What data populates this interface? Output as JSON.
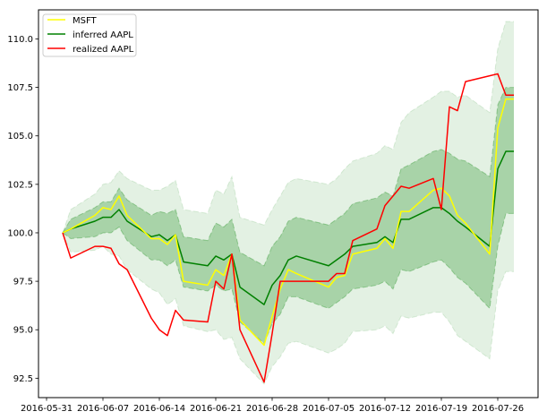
{
  "chart_data": {
    "type": "line",
    "xlim": [
      "2016-05-30",
      "2016-07-31"
    ],
    "ylim": [
      91.5,
      111.5
    ],
    "x_ticks": [
      "2016-05-31",
      "2016-06-07",
      "2016-06-14",
      "2016-06-21",
      "2016-06-28",
      "2016-07-05",
      "2016-07-12",
      "2016-07-19",
      "2016-07-26"
    ],
    "y_ticks": [
      "92.5",
      "95.0",
      "97.5",
      "100.0",
      "102.5",
      "105.0",
      "107.5",
      "110.0"
    ],
    "legend": {
      "placement": "top-left",
      "entries": [
        "MSFT",
        "inferred AAPL",
        "realized AAPL"
      ]
    },
    "colors": {
      "MSFT": "#ffff00",
      "inferred": "#008000",
      "realized": "#ff0000",
      "band": "#008000"
    },
    "x": [
      "2016-06-02",
      "2016-06-03",
      "2016-06-06",
      "2016-06-07",
      "2016-06-08",
      "2016-06-09",
      "2016-06-10",
      "2016-06-13",
      "2016-06-14",
      "2016-06-15",
      "2016-06-16",
      "2016-06-17",
      "2016-06-20",
      "2016-06-21",
      "2016-06-22",
      "2016-06-23",
      "2016-06-24",
      "2016-06-27",
      "2016-06-28",
      "2016-06-29",
      "2016-06-30",
      "2016-07-01",
      "2016-07-05",
      "2016-07-06",
      "2016-07-07",
      "2016-07-08",
      "2016-07-11",
      "2016-07-12",
      "2016-07-13",
      "2016-07-14",
      "2016-07-15",
      "2016-07-18",
      "2016-07-19",
      "2016-07-20",
      "2016-07-21",
      "2016-07-22",
      "2016-07-25",
      "2016-07-26",
      "2016-07-27",
      "2016-07-28"
    ],
    "series": [
      {
        "name": "MSFT",
        "values": [
          100.0,
          100.2,
          100.9,
          101.3,
          101.2,
          101.9,
          100.9,
          99.7,
          99.7,
          99.4,
          99.9,
          97.5,
          97.3,
          98.1,
          97.8,
          98.9,
          95.5,
          94.2,
          95.7,
          97.1,
          98.1,
          97.9,
          97.2,
          97.7,
          97.8,
          98.9,
          99.2,
          99.7,
          99.2,
          101.1,
          101.1,
          102.2,
          102.3,
          101.9,
          100.9,
          100.5,
          98.9,
          105.4,
          106.9,
          106.9
        ]
      },
      {
        "name": "inferred AAPL",
        "values": [
          100.0,
          100.2,
          100.6,
          100.8,
          100.8,
          101.2,
          100.6,
          99.8,
          99.9,
          99.6,
          99.9,
          98.5,
          98.3,
          98.8,
          98.6,
          98.9,
          97.2,
          96.3,
          97.3,
          97.8,
          98.6,
          98.8,
          98.3,
          98.6,
          98.9,
          99.3,
          99.5,
          99.8,
          99.5,
          100.7,
          100.7,
          101.3,
          101.3,
          101.0,
          100.6,
          100.3,
          99.3,
          103.3,
          104.2,
          104.2
        ]
      },
      {
        "name": "realized AAPL",
        "values": [
          100.0,
          98.7,
          99.3,
          99.3,
          99.2,
          98.4,
          98.1,
          95.6,
          95.0,
          94.7,
          96.0,
          95.5,
          95.4,
          97.5,
          97.1,
          98.9,
          95.0,
          92.3,
          94.8,
          97.5,
          97.5,
          97.5,
          97.5,
          97.9,
          97.9,
          99.6,
          100.2,
          101.4,
          101.9,
          102.4,
          102.3,
          102.8,
          101.2,
          106.5,
          106.3,
          107.8,
          108.1,
          108.2,
          107.1,
          107.1
        ]
      }
    ],
    "inner_band": {
      "upper": [
        100.0,
        100.7,
        101.3,
        101.6,
        101.6,
        102.3,
        101.7,
        100.9,
        101.1,
        101.0,
        101.2,
        99.8,
        99.6,
        100.5,
        100.3,
        100.7,
        99.0,
        98.3,
        99.3,
        99.8,
        100.6,
        100.8,
        100.4,
        100.7,
        101.0,
        101.5,
        101.8,
        102.1,
        101.9,
        103.3,
        103.5,
        104.2,
        104.3,
        104.1,
        103.8,
        103.7,
        102.9,
        106.6,
        107.5,
        107.5
      ],
      "lower": [
        100.0,
        99.7,
        99.8,
        100.0,
        100.0,
        100.3,
        99.6,
        98.6,
        98.6,
        98.3,
        98.6,
        97.2,
        97.0,
        97.3,
        97.0,
        97.1,
        95.4,
        94.3,
        95.3,
        95.8,
        96.7,
        96.7,
        96.1,
        96.4,
        96.7,
        97.1,
        97.3,
        97.5,
        97.1,
        98.1,
        98.0,
        98.5,
        98.6,
        98.2,
        97.7,
        97.4,
        96.1,
        99.3,
        101.0,
        101.0
      ]
    },
    "outer_band": {
      "upper": [
        100.0,
        101.2,
        102.0,
        102.5,
        102.6,
        103.2,
        102.8,
        102.2,
        102.2,
        102.4,
        102.7,
        101.2,
        101.0,
        102.2,
        102.0,
        102.9,
        100.8,
        100.4,
        101.2,
        101.9,
        102.6,
        102.8,
        102.5,
        102.8,
        103.3,
        103.7,
        104.1,
        104.5,
        104.3,
        105.7,
        106.2,
        107.0,
        107.3,
        107.3,
        107.0,
        107.1,
        106.2,
        109.5,
        110.9,
        110.9
      ],
      "lower": [
        100.0,
        99.0,
        99.1,
        99.3,
        98.9,
        98.8,
        98.1,
        97.1,
        96.9,
        96.3,
        96.6,
        95.2,
        94.9,
        95.0,
        94.5,
        94.6,
        93.5,
        92.2,
        93.1,
        93.6,
        94.3,
        94.4,
        93.8,
        94.0,
        94.3,
        94.9,
        95.0,
        95.2,
        94.8,
        95.7,
        95.6,
        95.9,
        95.9,
        95.4,
        94.7,
        94.4,
        93.5,
        97.0,
        98.0,
        98.0
      ]
    }
  }
}
